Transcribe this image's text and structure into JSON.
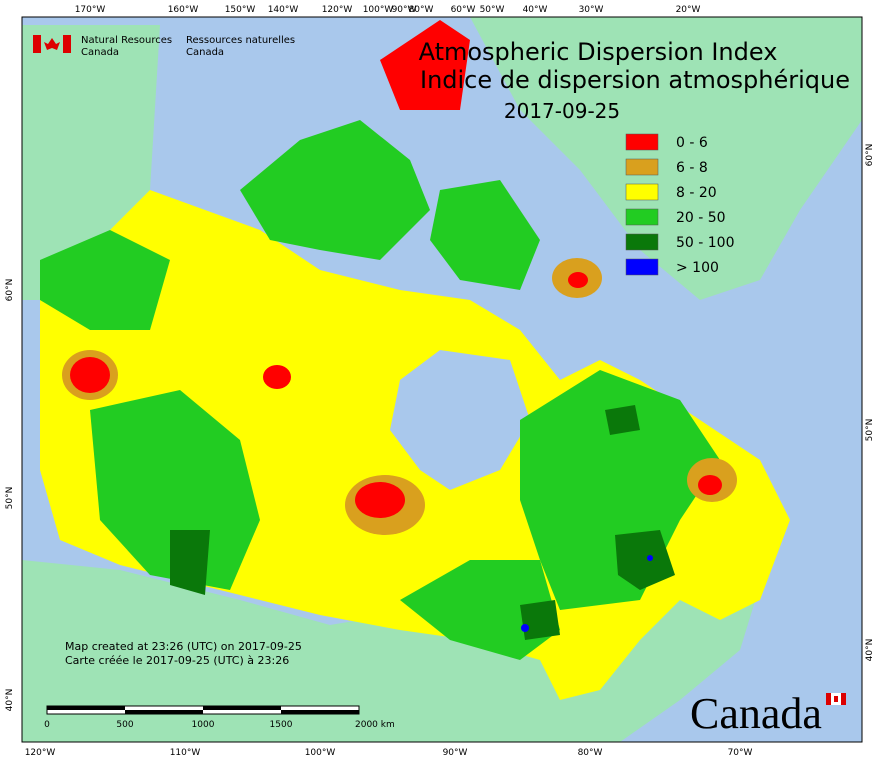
{
  "header": {
    "org_en": "Natural Resources\nCanada",
    "org_fr": "Ressources naturelles\nCanada"
  },
  "title": {
    "line1": "Atmospheric Dispersion Index",
    "line2": "Indice de dispersion atmosphérique",
    "date": "2017-09-25"
  },
  "legend": {
    "items": [
      {
        "label": "0 - 6",
        "color": "#ff0000"
      },
      {
        "label": "6 - 8",
        "color": "#d9a01e"
      },
      {
        "label": "8 - 20",
        "color": "#ffff00"
      },
      {
        "label": "20 - 50",
        "color": "#22cc22"
      },
      {
        "label": "50 - 100",
        "color": "#0a780a"
      },
      {
        "label": "> 100",
        "color": "#0000ff"
      }
    ]
  },
  "graticule": {
    "top": [
      "170°W",
      "160°W",
      "150°W",
      "140°W",
      "120°W",
      "100°W",
      "90°W",
      "80°W",
      "60°W",
      "50°W",
      "40°W",
      "30°W",
      "20°W"
    ],
    "bottom": [
      "120°W",
      "110°W",
      "100°W",
      "90°W",
      "80°W",
      "70°W"
    ],
    "left": [
      "60°N",
      "50°N",
      "40°N"
    ],
    "right": [
      "60°N",
      "50°N",
      "40°N"
    ]
  },
  "notes": {
    "created_en": "Map created at 23:26 (UTC) on 2017-09-25",
    "created_fr": "Carte créée le 2017-09-25 (UTC) à 23:26"
  },
  "scale": {
    "labels": [
      "0",
      "500",
      "1000",
      "1500",
      "2000  km"
    ]
  },
  "wordmark": "Canada"
}
